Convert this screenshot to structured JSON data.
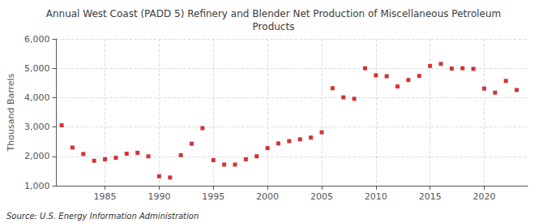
{
  "chart_data": {
    "type": "scatter",
    "title": "Annual West Coast (PADD 5) Refinery and Blender Net Production of Miscellaneous Petroleum\nProducts",
    "ylabel": "Thousand Barrels",
    "annotations": [
      "Source: U.S. Energy Information Administration"
    ],
    "color": "#cc0000",
    "marker": "square",
    "x": [
      1981,
      1982,
      1983,
      1984,
      1985,
      1986,
      1987,
      1988,
      1989,
      1990,
      1991,
      1992,
      1993,
      1994,
      1995,
      1996,
      1997,
      1998,
      1999,
      2000,
      2001,
      2002,
      2003,
      2004,
      2005,
      2006,
      2007,
      2008,
      2009,
      2010,
      2011,
      2012,
      2013,
      2014,
      2015,
      2016,
      2017,
      2018,
      2019,
      2020,
      2021,
      2022,
      2023
    ],
    "values": [
      3060,
      2300,
      2080,
      1850,
      1900,
      1950,
      2090,
      2120,
      2000,
      1320,
      1280,
      2040,
      2430,
      2960,
      1870,
      1720,
      1720,
      1900,
      2000,
      2280,
      2440,
      2520,
      2580,
      2640,
      2820,
      4320,
      4010,
      3960,
      5000,
      4760,
      4730,
      4380,
      4600,
      4740,
      5080,
      5150,
      4990,
      5000,
      4980,
      4310,
      4170,
      4570,
      4260
    ],
    "xlim": [
      1980.5,
      2024
    ],
    "xticks": [
      1985,
      1990,
      1995,
      2000,
      2005,
      2010,
      2015,
      2020
    ],
    "ylim": [
      1000,
      6000
    ],
    "yticks": [
      {
        "value": 1000,
        "label": "1,000"
      },
      {
        "value": 2000,
        "label": "2,000"
      },
      {
        "value": 3000,
        "label": "3,000"
      },
      {
        "value": 4000,
        "label": "4,000"
      },
      {
        "value": 5000,
        "label": "5,000"
      },
      {
        "value": 6000,
        "label": "6,000"
      }
    ],
    "grid": true
  }
}
